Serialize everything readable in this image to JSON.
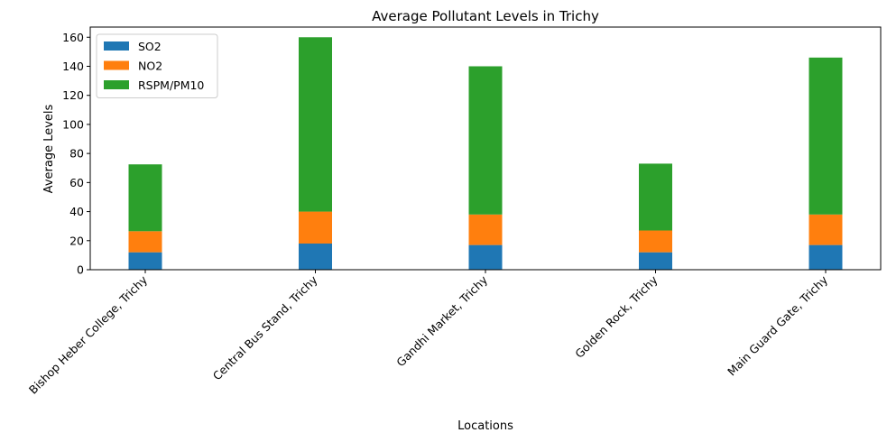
{
  "chart_data": {
    "type": "bar",
    "stacked": true,
    "title": "Average Pollutant Levels in Trichy",
    "xlabel": "Locations",
    "ylabel": "Average Levels",
    "ylim": [
      0,
      167
    ],
    "yticks": [
      0,
      20,
      40,
      60,
      80,
      100,
      120,
      140,
      160
    ],
    "grid": false,
    "legend_position": "top-left",
    "categories": [
      "Bishop Heber College, Trichy",
      "Central Bus Stand, Trichy",
      "Gandhi Market, Trichy",
      "Golden Rock, Trichy",
      "Main Guard Gate, Trichy"
    ],
    "series": [
      {
        "name": "SO2",
        "color": "#1f77b4",
        "values": [
          12,
          18,
          17,
          12,
          17
        ]
      },
      {
        "name": "NO2",
        "color": "#ff7f0e",
        "values": [
          14.5,
          22,
          21,
          15,
          21
        ]
      },
      {
        "name": "RSPM/PM10",
        "color": "#2ca02c",
        "values": [
          46,
          120,
          102,
          46,
          108
        ]
      }
    ]
  }
}
